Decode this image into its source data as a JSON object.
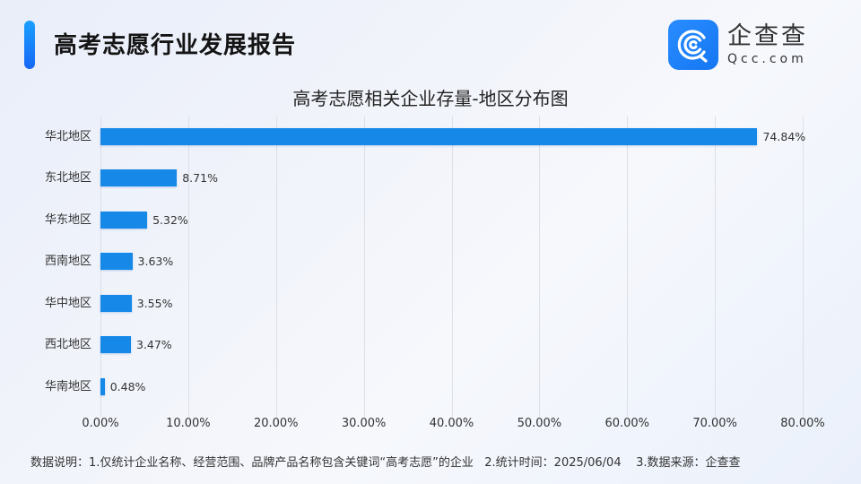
{
  "header": {
    "report_title": "高考志愿行业发展报告",
    "logo": {
      "name_cn": "企查查",
      "domain": "Qcc.com",
      "icon": "qcc-logo-icon"
    }
  },
  "colors": {
    "bar": "#1588e8",
    "accent": "#1677f5",
    "grid": "#dcdfe6"
  },
  "chart_data": {
    "type": "bar",
    "orientation": "horizontal",
    "title": "高考志愿相关企业存量-地区分布图",
    "xlabel": "",
    "ylabel": "",
    "categories": [
      "华北地区",
      "东北地区",
      "华东地区",
      "西南地区",
      "华中地区",
      "西北地区",
      "华南地区"
    ],
    "values": [
      74.84,
      8.71,
      5.32,
      3.63,
      3.55,
      3.47,
      0.48
    ],
    "value_labels": [
      "74.84%",
      "8.71%",
      "5.32%",
      "3.63%",
      "3.55%",
      "3.47%",
      "0.48%"
    ],
    "xlim": [
      0,
      80
    ],
    "x_ticks": [
      "0.00%",
      "10.00%",
      "20.00%",
      "30.00%",
      "40.00%",
      "50.00%",
      "60.00%",
      "70.00%",
      "80.00%"
    ],
    "grid": "vertical",
    "legend": "none"
  },
  "footnote": {
    "text": "数据说明：1.仅统计企业名称、经营范围、品牌产品名称包含关键词“高考志愿”的企业   2.统计时间：2025/06/04    3.数据来源：企查查"
  }
}
